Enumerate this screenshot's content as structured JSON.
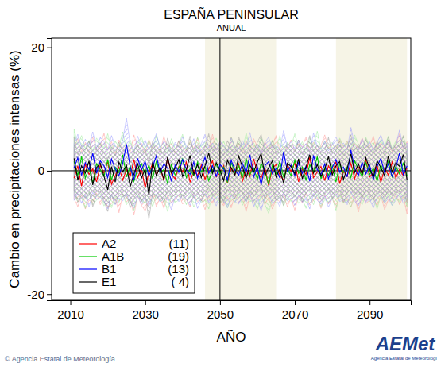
{
  "chart_data": {
    "type": "line",
    "title": "ESPAÑA PENINSULAR",
    "subtitle": "ANUAL",
    "x_label": "AÑO",
    "y_label": "Cambio en precipitaciones intensas (%)",
    "source": "© Agencia Estatal de Meteorología",
    "logo": "AEMet",
    "logo_caption": "Agencia Estatal de Meteorología",
    "xlim": [
      2005,
      2101
    ],
    "ylim": [
      -21,
      21.5
    ],
    "xticks": [
      2010,
      2030,
      2050,
      2070,
      2090
    ],
    "yticks": [
      -20,
      0,
      20
    ],
    "hlines": [
      0
    ],
    "vlines": [
      2050
    ],
    "shaded_ranges": [
      [
        2046,
        2065
      ],
      [
        2081,
        2100
      ]
    ],
    "legend": "lower left",
    "grid": false,
    "x": [
      2011,
      2012,
      2013,
      2014,
      2015,
      2016,
      2017,
      2018,
      2019,
      2020,
      2021,
      2022,
      2023,
      2024,
      2025,
      2026,
      2027,
      2028,
      2029,
      2030,
      2031,
      2032,
      2033,
      2034,
      2035,
      2036,
      2037,
      2038,
      2039,
      2040,
      2041,
      2042,
      2043,
      2044,
      2045,
      2046,
      2047,
      2048,
      2049,
      2050,
      2051,
      2052,
      2053,
      2054,
      2055,
      2056,
      2057,
      2058,
      2059,
      2060,
      2061,
      2062,
      2063,
      2064,
      2065,
      2066,
      2067,
      2068,
      2069,
      2070,
      2071,
      2072,
      2073,
      2074,
      2075,
      2076,
      2077,
      2078,
      2079,
      2080,
      2081,
      2082,
      2083,
      2084,
      2085,
      2086,
      2087,
      2088,
      2089,
      2090,
      2091,
      2092,
      2093,
      2094,
      2095,
      2096,
      2097,
      2098,
      2099,
      2100
    ],
    "series": [
      {
        "name": "A2",
        "count_label": "(11)",
        "color": "#ff0000",
        "values": [
          -1.2,
          0.8,
          -2.5,
          1.1,
          -0.6,
          0.3,
          -1.8,
          0.9,
          -0.4,
          1.5,
          -2.2,
          -0.8,
          0.6,
          -1.5,
          0.2,
          -0.9,
          1.8,
          -1.1,
          0.4,
          -2.8,
          -0.3,
          1.2,
          -0.7,
          0.5,
          -1.6,
          2.1,
          -0.5,
          -1.3,
          0.7,
          -0.2,
          1.4,
          -1.9,
          0.1,
          -0.8,
          0.9,
          -1.4,
          0.3,
          1.6,
          -1.0,
          -0.4,
          0.8,
          -2.0,
          0.5,
          -0.6,
          1.1,
          -1.7,
          0.2,
          -0.9,
          1.9,
          -0.3,
          -1.2,
          0.6,
          -2.4,
          0.4,
          1.0,
          -0.7,
          -1.5,
          0.9,
          -0.1,
          1.3,
          -1.8,
          0.3,
          -0.6,
          2.2,
          -1.1,
          -0.2,
          0.7,
          -1.6,
          0.8,
          -0.4,
          1.5,
          -2.1,
          0.0,
          -0.9,
          1.2,
          -1.3,
          0.6,
          -0.5,
          1.7,
          -1.0,
          -0.3,
          0.9,
          -1.9,
          0.4,
          -0.7,
          1.4,
          -1.2,
          0.2,
          -0.8,
          0.5
        ],
        "low": [
          -4.5,
          -5.8,
          -3.9,
          -6.2,
          -4.8,
          -5.1,
          -3.6,
          -5.5,
          -4.2,
          -6.0,
          -5.3,
          -4.4,
          -6.8,
          -3.8,
          -5.0,
          -4.6,
          -7.2,
          -4.1,
          -5.6,
          -6.5,
          -4.9,
          -3.7,
          -5.8,
          -4.3,
          -6.1,
          -4.0,
          -5.2,
          -4.7,
          -3.9,
          -5.4,
          -4.6,
          -5.9,
          -3.8,
          -5.0,
          -4.4,
          -6.3,
          -4.1,
          -5.3,
          -3.6,
          -4.8,
          -5.7,
          -4.2,
          -6.0,
          -3.9,
          -5.1,
          -4.5,
          -6.6,
          -4.0,
          -5.3,
          -4.7,
          -3.8,
          -5.5,
          -4.3,
          -6.2,
          -4.6,
          -5.0,
          -3.9,
          -5.8,
          -4.4,
          -6.4,
          -4.1,
          -5.2,
          -3.7,
          -5.6,
          -4.8,
          -4.3,
          -6.1,
          -4.0,
          -5.4,
          -4.5,
          -6.0,
          -3.8,
          -5.1,
          -4.6,
          -5.9,
          -4.2,
          -6.7,
          -3.9,
          -5.3,
          -4.8,
          -4.4,
          -5.7,
          -4.0,
          -6.3,
          -4.7,
          -5.0,
          -3.8,
          -5.5,
          -4.2,
          -7.0
        ],
        "high": [
          3.8,
          5.2,
          3.1,
          4.6,
          2.9,
          5.5,
          3.4,
          4.0,
          6.1,
          3.3,
          4.7,
          2.8,
          5.0,
          3.6,
          4.3,
          3.0,
          5.8,
          3.9,
          4.5,
          2.7,
          5.1,
          3.5,
          4.2,
          3.0,
          5.6,
          3.7,
          4.4,
          2.9,
          4.9,
          3.8,
          3.2,
          4.8,
          3.6,
          5.3,
          3.0,
          4.1,
          3.5,
          5.9,
          3.3,
          4.6,
          4.0,
          3.1,
          5.4,
          3.7,
          4.5,
          2.8,
          4.9,
          3.4,
          5.2,
          3.9,
          3.0,
          4.7,
          3.5,
          4.2,
          5.7,
          3.3,
          4.0,
          3.6,
          5.0,
          3.2,
          4.4,
          3.8,
          5.5,
          3.1,
          4.6,
          3.4,
          4.1,
          5.8,
          3.7,
          4.3,
          3.5,
          5.1,
          3.9,
          4.8,
          3.2,
          4.4,
          3.6,
          5.3,
          3.8,
          4.0,
          5.6,
          3.3,
          4.5,
          3.7,
          5.0,
          3.1,
          4.2,
          6.0,
          3.5,
          4.7
        ]
      },
      {
        "name": "A1B",
        "count_label": "(19)",
        "color": "#00cc00",
        "values": [
          1.5,
          -0.8,
          2.3,
          -1.2,
          0.4,
          -2.0,
          1.1,
          0.2,
          -0.9,
          1.8,
          -1.5,
          0.6,
          -0.3,
          2.6,
          -1.0,
          0.8,
          -1.7,
          0.3,
          1.2,
          -0.6,
          0.9,
          -1.3,
          1.6,
          -0.4,
          0.2,
          -2.1,
          1.0,
          -0.7,
          0.5,
          1.9,
          -1.1,
          0.3,
          -0.8,
          1.4,
          -0.2,
          0.7,
          -1.6,
          0.1,
          1.1,
          -0.5,
          0.6,
          -1.9,
          1.3,
          -0.3,
          0.8,
          -1.2,
          2.0,
          -0.6,
          0.4,
          -1.4,
          1.2,
          -0.1,
          -2.2,
          0.9,
          -0.5,
          1.5,
          -1.0,
          0.3,
          -0.8,
          1.7,
          -0.4,
          0.6,
          -1.5,
          1.0,
          -0.2,
          2.3,
          -1.3,
          0.5,
          -0.7,
          0.8,
          -1.8,
          1.1,
          -0.3,
          0.6,
          -1.1,
          1.6,
          0.2,
          -0.9,
          1.3,
          -0.6,
          0.4,
          -1.7,
          0.9,
          -0.2,
          1.5,
          -1.0,
          0.7,
          -0.5,
          1.2,
          -0.8
        ],
        "low": [
          -3.9,
          -5.0,
          -4.4,
          -6.1,
          -3.6,
          -5.4,
          -4.8,
          -4.1,
          -5.7,
          -4.5,
          -6.0,
          -4.2,
          -5.1,
          -3.8,
          -5.5,
          -4.6,
          -6.4,
          -4.0,
          -4.9,
          -5.3,
          -4.3,
          -5.8,
          -3.9,
          -5.0,
          -4.5,
          -6.6,
          -4.1,
          -5.2,
          -4.7,
          -3.8,
          -5.5,
          -4.0,
          -5.9,
          -4.4,
          -5.1,
          -4.8,
          -6.2,
          -3.9,
          -4.6,
          -5.3,
          -4.2,
          -6.0,
          -4.5,
          -5.1,
          -3.7,
          -5.6,
          -4.3,
          -5.0,
          -4.8,
          -6.3,
          -4.0,
          -5.4,
          -6.9,
          -4.6,
          -5.2,
          -4.1,
          -5.7,
          -4.4,
          -5.0,
          -3.9,
          -5.3,
          -4.5,
          -6.1,
          -4.2,
          -5.5,
          -3.8,
          -5.9,
          -4.7,
          -5.1,
          -4.3,
          -6.4,
          -4.0,
          -5.2,
          -4.8,
          -5.8,
          -4.1,
          -4.6,
          -5.5,
          -3.9,
          -5.0,
          -4.4,
          -6.2,
          -4.1,
          -5.3,
          -3.7,
          -5.6,
          -4.5,
          -5.1,
          -4.0,
          -5.8
        ],
        "high": [
          6.8,
          4.1,
          5.7,
          3.6,
          4.9,
          3.2,
          5.3,
          4.4,
          3.8,
          6.0,
          3.5,
          4.8,
          3.9,
          6.3,
          3.4,
          5.0,
          3.1,
          4.6,
          5.5,
          3.7,
          4.9,
          3.3,
          5.8,
          3.8,
          4.5,
          3.0,
          5.2,
          3.6,
          4.3,
          5.9,
          3.4,
          4.7,
          3.2,
          5.4,
          3.9,
          4.6,
          3.1,
          4.2,
          5.3,
          3.6,
          4.8,
          3.0,
          5.5,
          3.7,
          4.9,
          3.3,
          6.1,
          3.8,
          4.5,
          3.2,
          5.4,
          4.0,
          3.1,
          5.0,
          3.6,
          5.7,
          3.4,
          4.6,
          3.9,
          6.0,
          3.8,
          4.7,
          3.3,
          5.2,
          4.1,
          6.4,
          3.5,
          4.8,
          3.9,
          4.6,
          3.2,
          5.3,
          4.0,
          4.7,
          3.5,
          5.8,
          4.3,
          3.7,
          5.4,
          4.1,
          4.6,
          3.3,
          5.1,
          3.9,
          5.6,
          3.6,
          4.8,
          4.2,
          5.5,
          3.8
        ]
      },
      {
        "name": "B1",
        "count_label": "(13)",
        "color": "#0000ff",
        "values": [
          0.5,
          2.1,
          -0.7,
          1.3,
          0.2,
          2.8,
          -0.4,
          1.6,
          0.8,
          -1.1,
          1.9,
          0.3,
          -0.8,
          1.2,
          4.3,
          0.6,
          -1.4,
          2.0,
          0.1,
          1.5,
          -0.9,
          0.7,
          2.4,
          -0.3,
          1.1,
          0.4,
          -1.6,
          0.9,
          -0.2,
          1.8,
          0.2,
          -0.6,
          1.4,
          -1.2,
          0.5,
          2.2,
          -0.4,
          0.8,
          -0.9,
          1.0,
          0.3,
          -1.5,
          1.7,
          0.1,
          -0.7,
          1.2,
          -0.3,
          2.6,
          -1.0,
          0.6,
          -2.3,
          0.8,
          1.5,
          -0.5,
          0.4,
          -1.2,
          3.1,
          -0.1,
          0.9,
          -0.8,
          1.3,
          -0.4,
          0.7,
          -1.7,
          2.5,
          0.2,
          -0.6,
          1.1,
          -1.3,
          0.5,
          1.8,
          -0.2,
          0.6,
          -1.0,
          3.4,
          0.3,
          -0.8,
          1.4,
          -0.5,
          0.9,
          -1.4,
          0.7,
          2.0,
          -0.3,
          1.1,
          -0.9,
          0.4,
          2.9,
          -0.6,
          0.8
        ],
        "low": [
          -4.8,
          -3.7,
          -5.3,
          -4.0,
          -5.9,
          -3.5,
          -4.6,
          -4.2,
          -5.0,
          -6.2,
          -3.9,
          -5.5,
          -4.4,
          -4.9,
          -3.6,
          -5.2,
          -6.0,
          -4.1,
          -5.4,
          -4.3,
          -5.8,
          -4.0,
          -3.8,
          -5.1,
          -4.5,
          -4.7,
          -6.3,
          -4.2,
          -5.0,
          -3.9,
          -4.6,
          -5.6,
          -4.0,
          -6.1,
          -4.8,
          -3.7,
          -5.2,
          -4.4,
          -5.7,
          -4.1,
          -4.9,
          -6.0,
          -3.9,
          -5.0,
          -5.4,
          -4.3,
          -5.1,
          -3.6,
          -5.9,
          -4.5,
          -6.5,
          -4.2,
          -3.8,
          -5.3,
          -4.7,
          -5.8,
          -3.5,
          -4.9,
          -4.4,
          -5.6,
          -4.0,
          -5.1,
          -4.6,
          -6.2,
          -3.7,
          -4.8,
          -5.4,
          -4.1,
          -5.9,
          -4.5,
          -3.8,
          -5.0,
          -4.7,
          -5.5,
          -3.4,
          -4.9,
          -5.7,
          -4.2,
          -5.1,
          -4.6,
          -6.0,
          -4.3,
          -3.9,
          -5.2,
          -4.5,
          -5.6,
          -4.8,
          -3.7,
          -5.3,
          -4.4
        ],
        "high": [
          4.4,
          5.9,
          3.8,
          5.1,
          4.2,
          6.3,
          3.6,
          5.4,
          4.7,
          3.3,
          5.7,
          4.0,
          3.5,
          4.9,
          8.6,
          4.3,
          3.2,
          5.6,
          3.9,
          5.0,
          3.4,
          4.5,
          6.0,
          3.7,
          4.8,
          4.1,
          3.1,
          4.6,
          3.8,
          5.5,
          4.0,
          3.6,
          5.2,
          3.0,
          4.4,
          5.9,
          3.7,
          4.5,
          3.3,
          4.8,
          4.1,
          3.2,
          5.3,
          3.9,
          3.5,
          4.9,
          3.8,
          6.2,
          3.4,
          4.3,
          2.9,
          4.6,
          5.4,
          3.7,
          4.2,
          3.3,
          6.5,
          3.9,
          4.7,
          3.6,
          5.0,
          3.8,
          4.4,
          3.1,
          6.1,
          4.0,
          3.6,
          4.8,
          3.2,
          4.3,
          5.5,
          3.9,
          4.5,
          3.4,
          7.0,
          4.1,
          3.5,
          5.2,
          3.8,
          4.7,
          3.3,
          4.6,
          5.8,
          3.9,
          4.9,
          3.5,
          4.2,
          6.6,
          3.7,
          4.5
        ]
      },
      {
        "name": "E1",
        "count_label": "( 4)",
        "color": "#000000",
        "values": [
          2.0,
          -1.5,
          0.8,
          -0.4,
          1.6,
          -2.3,
          0.5,
          1.2,
          -0.9,
          -3.1,
          0.7,
          -1.8,
          1.4,
          -0.2,
          0.9,
          -2.6,
          -0.5,
          1.1,
          -1.2,
          0.3,
          -4.0,
          1.5,
          -0.8,
          0.6,
          -1.4,
          2.2,
          -0.3,
          0.4,
          1.8,
          -0.9,
          0.2,
          2.5,
          -0.6,
          1.0,
          -1.1,
          0.8,
          2.9,
          -0.4,
          1.3,
          0.1,
          -1.6,
          1.7,
          0.4,
          -0.7,
          2.4,
          0.6,
          -1.2,
          0.9,
          -0.2,
          1.4,
          2.8,
          -0.8,
          0.5,
          1.6,
          -1.0,
          0.3,
          -2.0,
          1.2,
          0.7,
          -0.5,
          1.9,
          -1.3,
          0.6,
          2.6,
          -0.4,
          1.0,
          -0.9,
          0.2,
          2.3,
          -0.7,
          0.8,
          1.5,
          -1.4,
          0.4,
          2.7,
          -0.3,
          1.1,
          -0.6,
          2.1,
          0.3,
          -1.0,
          1.6,
          0.5,
          -0.8,
          2.4,
          -0.2,
          1.3,
          0.7,
          2.6,
          -1.5
        ],
        "low": [
          -3.2,
          -5.1,
          -3.9,
          -4.4,
          -3.5,
          -5.8,
          -4.0,
          -3.3,
          -4.9,
          -6.6,
          -3.8,
          -5.4,
          -3.6,
          -4.2,
          -3.9,
          -6.0,
          -4.5,
          -3.4,
          -5.0,
          -3.7,
          -7.9,
          -3.5,
          -4.6,
          -3.8,
          -5.2,
          -3.0,
          -4.3,
          -3.9,
          -3.1,
          -4.7,
          -3.6,
          -2.9,
          -4.4,
          -3.5,
          -4.9,
          -3.7,
          -2.8,
          -4.1,
          -3.3,
          -3.8,
          -5.2,
          -3.0,
          -3.7,
          -4.5,
          -3.1,
          -3.6,
          -5.0,
          -3.4,
          -4.2,
          -3.2,
          -2.8,
          -4.6,
          -3.5,
          -3.0,
          -4.8,
          -3.9,
          -5.6,
          -3.3,
          -3.7,
          -4.3,
          -3.1,
          -5.0,
          -3.6,
          -2.9,
          -4.2,
          -3.4,
          -4.7,
          -3.8,
          -3.0,
          -4.5,
          -3.5,
          -3.2,
          -5.1,
          -3.7,
          -2.8,
          -4.0,
          -3.4,
          -4.4,
          -3.1,
          -3.9,
          -4.8,
          -3.3,
          -3.6,
          -4.5,
          -3.0,
          -4.1,
          -3.4,
          -3.7,
          -2.9,
          -5.3
        ],
        "high": [
          5.4,
          2.6,
          4.1,
          3.3,
          4.9,
          2.2,
          3.8,
          4.5,
          2.9,
          1.8,
          3.9,
          2.5,
          4.6,
          3.2,
          4.0,
          1.9,
          3.1,
          4.3,
          2.7,
          3.6,
          1.2,
          4.8,
          2.9,
          3.7,
          2.4,
          5.3,
          3.0,
          3.5,
          4.9,
          2.8,
          3.4,
          5.6,
          3.0,
          4.2,
          2.6,
          3.9,
          6.0,
          3.2,
          4.5,
          3.3,
          2.5,
          4.9,
          3.6,
          3.1,
          5.5,
          3.8,
          2.7,
          4.1,
          3.2,
          4.6,
          5.9,
          3.0,
          3.7,
          4.8,
          2.8,
          3.5,
          2.3,
          4.4,
          3.9,
          3.1,
          5.0,
          2.6,
          3.8,
          5.7,
          3.2,
          4.2,
          2.9,
          3.4,
          5.4,
          3.0,
          4.0,
          4.7,
          2.5,
          3.6,
          5.8,
          3.3,
          4.3,
          3.1,
          5.2,
          3.5,
          2.8,
          4.8,
          3.7,
          3.0,
          5.5,
          3.2,
          4.4,
          3.9,
          5.7,
          2.4
        ]
      }
    ]
  }
}
